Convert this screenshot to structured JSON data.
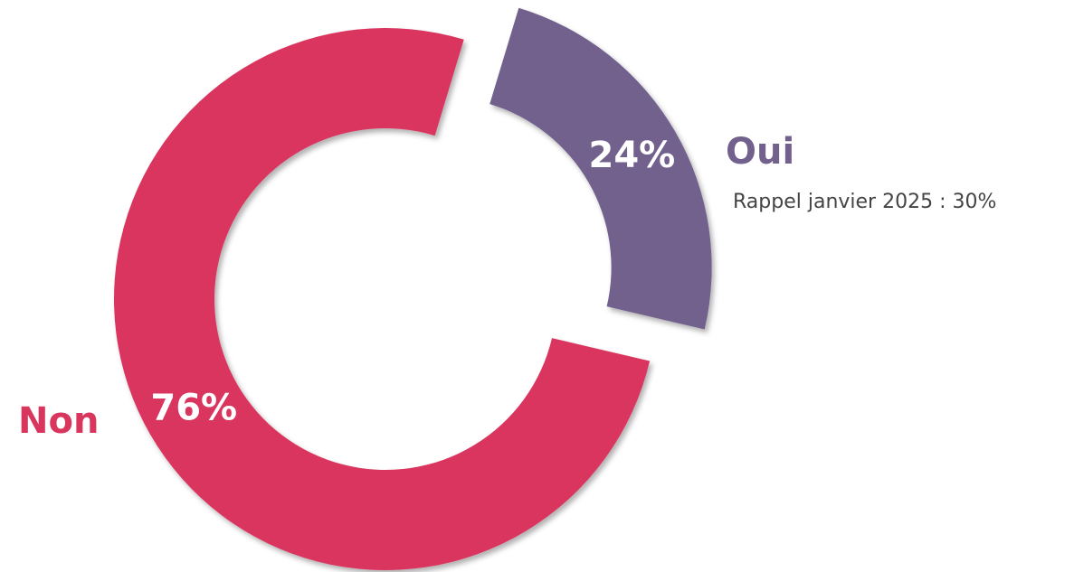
{
  "chart_data": {
    "type": "pie",
    "donut": true,
    "categories": [
      "Oui",
      "Non"
    ],
    "values": [
      24,
      76
    ],
    "value_labels": [
      "24%",
      "76%"
    ],
    "colors": [
      "#72608d",
      "#d9365e"
    ],
    "annotation": "Rappel janvier 2025 : 30%"
  }
}
